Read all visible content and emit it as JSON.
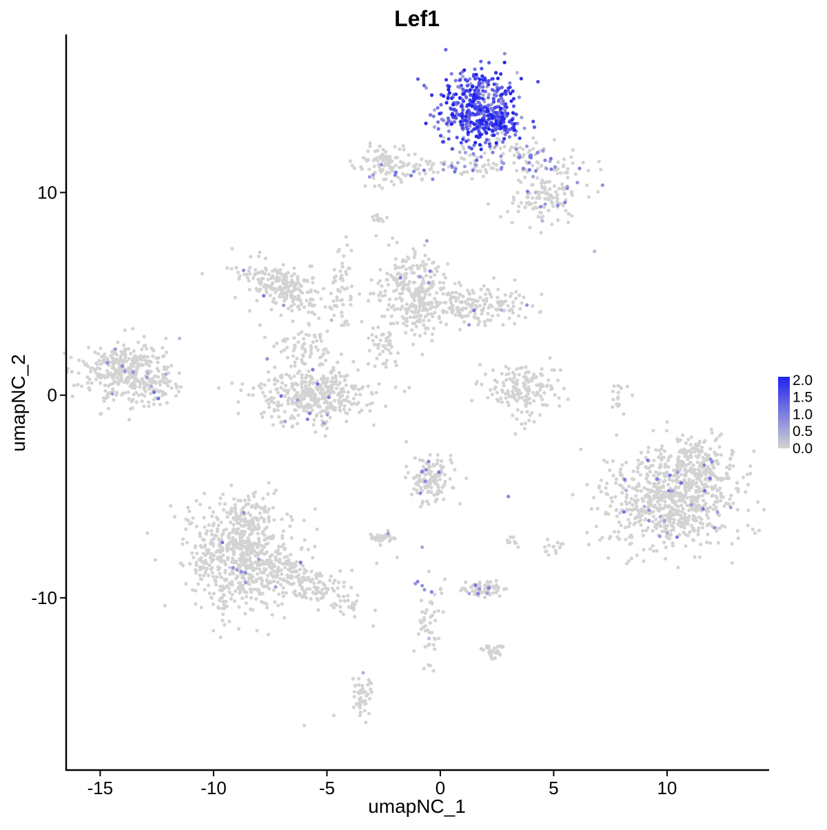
{
  "chart_data": {
    "type": "scatter",
    "title": "Lef1",
    "xlabel": "umapNC_1",
    "ylabel": "umapNC_2",
    "xlim": [
      -16.5,
      14.5
    ],
    "ylim": [
      -18.5,
      17.8
    ],
    "x_ticks": [
      -15,
      -10,
      -5,
      0,
      5,
      10
    ],
    "x_tick_labels": [
      "-15",
      "-10",
      "-5",
      "0",
      "5",
      "10"
    ],
    "y_ticks": [
      -10,
      0,
      10
    ],
    "y_tick_labels": [
      "-10",
      "0",
      "10"
    ],
    "grid": false,
    "legend": {
      "placement": "right",
      "type": "colorbar",
      "min": 0.0,
      "max": 2.1,
      "ticks": [
        0.0,
        0.5,
        1.0,
        1.5,
        2.0
      ],
      "tick_labels": [
        "0.0",
        "0.5",
        "1.0",
        "1.5",
        "2.0"
      ],
      "low_color": "#d3d3d3",
      "high_color": "#2222ee"
    },
    "point_color_scale": {
      "low": "#d3d3d3",
      "high": "#2222ee"
    },
    "clusters": [
      {
        "x": 1.6,
        "y": 14.2,
        "sx": 0.9,
        "sy": 0.95,
        "n": 420,
        "expr": 1.4,
        "rot": 0
      },
      {
        "x": 2.4,
        "y": 13.3,
        "sx": 0.6,
        "sy": 0.4,
        "n": 90,
        "expr": 1.5,
        "rot": 0
      },
      {
        "x": 4.0,
        "y": 11.6,
        "sx": 1.4,
        "sy": 0.55,
        "n": 110,
        "expr": 0.3,
        "rot": -15
      },
      {
        "x": 4.6,
        "y": 9.6,
        "sx": 0.9,
        "sy": 0.6,
        "n": 110,
        "expr": 0.05,
        "rot": 0
      },
      {
        "x": 1.5,
        "y": 11.4,
        "sx": 0.9,
        "sy": 0.4,
        "n": 50,
        "expr": 0.25,
        "rot": 0
      },
      {
        "x": -2.3,
        "y": 11.3,
        "sx": 0.7,
        "sy": 0.5,
        "n": 90,
        "expr": 0.05,
        "rot": 0
      },
      {
        "x": -0.8,
        "y": 11.3,
        "sx": 0.8,
        "sy": 0.2,
        "n": 30,
        "expr": 0.2,
        "rot": 0
      },
      {
        "x": -2.7,
        "y": 8.8,
        "sx": 0.15,
        "sy": 0.15,
        "n": 10,
        "expr": 0.0,
        "rot": 0
      },
      {
        "x": -6.9,
        "y": 5.3,
        "sx": 1.0,
        "sy": 0.55,
        "n": 220,
        "expr": 0.02,
        "rot": -25
      },
      {
        "x": -4.3,
        "y": 5.3,
        "sx": 0.25,
        "sy": 1.2,
        "n": 45,
        "expr": 0.0,
        "rot": 0
      },
      {
        "x": -1.2,
        "y": 5.0,
        "sx": 0.8,
        "sy": 1.0,
        "n": 260,
        "expr": 0.02,
        "rot": 0
      },
      {
        "x": 1.3,
        "y": 4.4,
        "sx": 1.3,
        "sy": 0.5,
        "n": 200,
        "expr": 0.02,
        "rot": 0
      },
      {
        "x": -2.4,
        "y": 2.4,
        "sx": 0.35,
        "sy": 0.6,
        "n": 40,
        "expr": 0.0,
        "rot": 0
      },
      {
        "x": -5.6,
        "y": 0.0,
        "sx": 1.3,
        "sy": 0.75,
        "n": 380,
        "expr": 0.03,
        "rot": 0
      },
      {
        "x": -6.0,
        "y": 2.5,
        "sx": 0.9,
        "sy": 0.6,
        "n": 60,
        "expr": 0.0,
        "rot": 0
      },
      {
        "x": -13.9,
        "y": 1.2,
        "sx": 0.9,
        "sy": 0.7,
        "n": 330,
        "expr": 0.02,
        "rot": 0
      },
      {
        "x": -12.6,
        "y": 0.5,
        "sx": 0.5,
        "sy": 0.4,
        "n": 60,
        "expr": 0.02,
        "rot": 0
      },
      {
        "x": 3.6,
        "y": 0.3,
        "sx": 0.8,
        "sy": 0.7,
        "n": 160,
        "expr": 0.0,
        "rot": 0
      },
      {
        "x": 8.0,
        "y": -0.1,
        "sx": 0.18,
        "sy": 0.4,
        "n": 15,
        "expr": 0.0,
        "rot": 0
      },
      {
        "x": 10.2,
        "y": -5.0,
        "sx": 1.4,
        "sy": 1.2,
        "n": 750,
        "expr": 0.03,
        "rot": 0
      },
      {
        "x": 11.6,
        "y": -3.2,
        "sx": 0.7,
        "sy": 0.6,
        "n": 120,
        "expr": 0.02,
        "rot": 0
      },
      {
        "x": -0.5,
        "y": -4.2,
        "sx": 0.5,
        "sy": 0.6,
        "n": 140,
        "expr": 0.03,
        "rot": 0
      },
      {
        "x": -2.5,
        "y": -7.0,
        "sx": 0.3,
        "sy": 0.2,
        "n": 30,
        "expr": 0.05,
        "rot": 0
      },
      {
        "x": -8.8,
        "y": -8.0,
        "sx": 1.2,
        "sy": 1.3,
        "n": 620,
        "expr": 0.01,
        "rot": 0
      },
      {
        "x": -8.6,
        "y": -6.2,
        "sx": 0.5,
        "sy": 0.7,
        "n": 90,
        "expr": 0.0,
        "rot": 0
      },
      {
        "x": -5.7,
        "y": -9.4,
        "sx": 1.2,
        "sy": 0.45,
        "n": 160,
        "expr": 0.0,
        "rot": -30
      },
      {
        "x": 2.0,
        "y": -9.5,
        "sx": 0.6,
        "sy": 0.2,
        "n": 70,
        "expr": 0.05,
        "rot": 0
      },
      {
        "x": -0.5,
        "y": -11.0,
        "sx": 0.3,
        "sy": 0.9,
        "n": 45,
        "expr": 0.05,
        "rot": 0
      },
      {
        "x": 2.3,
        "y": -12.6,
        "sx": 0.3,
        "sy": 0.2,
        "n": 25,
        "expr": 0.0,
        "rot": 0
      },
      {
        "x": -3.4,
        "y": -14.8,
        "sx": 0.2,
        "sy": 0.6,
        "n": 45,
        "expr": 0.0,
        "rot": 0
      },
      {
        "x": 5.0,
        "y": -7.5,
        "sx": 0.25,
        "sy": 0.15,
        "n": 15,
        "expr": 0.0,
        "rot": 0
      },
      {
        "x": 3.1,
        "y": -7.2,
        "sx": 0.2,
        "sy": 0.15,
        "n": 10,
        "expr": 0.0,
        "rot": 0
      }
    ],
    "sparse_points": [
      [
        -10.5,
        6.0,
        0
      ],
      [
        -11.5,
        2.8,
        0.3
      ],
      [
        -4.1,
        7.4,
        0
      ],
      [
        -4.8,
        3.7,
        0.3
      ],
      [
        6.8,
        7.1,
        0.3
      ],
      [
        -6.0,
        -16.3,
        0
      ],
      [
        -4.7,
        -15.8,
        0
      ],
      [
        -1.5,
        -2.3,
        0
      ],
      [
        -1.2,
        2.5,
        0
      ],
      [
        -0.8,
        -7.5,
        0.5
      ],
      [
        -1.0,
        -9.2,
        0.9
      ],
      [
        -0.8,
        -9.4,
        0.8
      ],
      [
        -0.7,
        -9.6,
        0.7
      ],
      [
        -1.1,
        -9.3,
        0.8
      ],
      [
        -0.5,
        -12.0,
        0.3
      ],
      [
        3.0,
        -5.0,
        0.9
      ],
      [
        2.7,
        4.2,
        0.4
      ],
      [
        -0.5,
        -8.7,
        0
      ],
      [
        -0.3,
        -13.6,
        0
      ],
      [
        -1.9,
        -8.0,
        0
      ],
      [
        -2.8,
        -8.3,
        0
      ],
      [
        9.9,
        -6.2,
        0.6
      ],
      [
        9.7,
        -6.0,
        0.5
      ],
      [
        9.0,
        -5.5,
        0.4
      ],
      [
        10.0,
        -6.8,
        0.4
      ],
      [
        8.2,
        -4.7,
        0.4
      ],
      [
        4.2,
        10.0,
        0.3
      ],
      [
        5.6,
        10.3,
        0.5
      ],
      [
        4.5,
        8.6,
        0.4
      ],
      [
        -3.4,
        -13.7,
        0.4
      ],
      [
        -12.9,
        1.1,
        0.4
      ]
    ]
  }
}
